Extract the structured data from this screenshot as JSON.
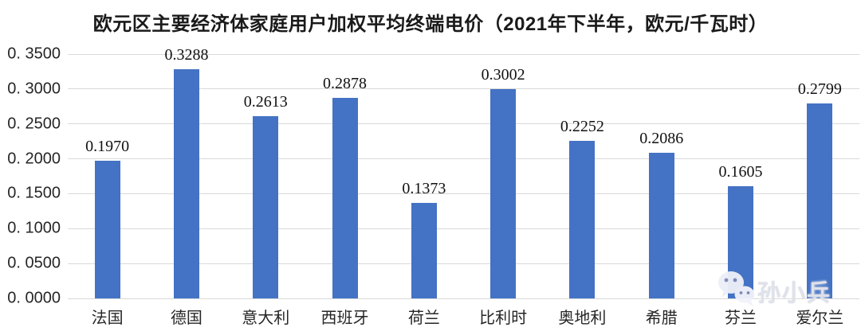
{
  "chart_data": {
    "type": "bar",
    "title": "欧元区主要经济体家庭用户加权平均终端电价（2021年下半年，欧元/千瓦时）",
    "categories": [
      "法国",
      "德国",
      "意大利",
      "西班牙",
      "荷兰",
      "比利时",
      "奥地利",
      "希腊",
      "芬兰",
      "爱尔兰"
    ],
    "values": [
      0.197,
      0.3288,
      0.2613,
      0.2878,
      0.1373,
      0.3002,
      0.2252,
      0.2086,
      0.1605,
      0.2799
    ],
    "value_labels": [
      "0.1970",
      "0.3288",
      "0.2613",
      "0.2878",
      "0.1373",
      "0.3002",
      "0.2252",
      "0.2086",
      "0.1605",
      "0.2799"
    ],
    "xlabel": "",
    "ylabel": "",
    "ylim": [
      0,
      0.35
    ],
    "yticks": [
      0.35,
      0.3,
      0.25,
      0.2,
      0.15,
      0.1,
      0.05,
      0.0
    ],
    "ytick_labels": [
      "0. 3500",
      "0. 3000",
      "0. 2500",
      "0. 2000",
      "0. 1500",
      "0. 1000",
      "0. 0500",
      "0. 0000"
    ],
    "grid": true,
    "legend": false,
    "bar_color": "#4472C4"
  },
  "watermark": {
    "text": "孙小兵",
    "icon": "wechat-icon"
  },
  "colors": {
    "bar": "#4472C4",
    "gridline": "#D9D9D9",
    "axis_text": "#262626",
    "value_label_text": "#111111",
    "watermark_text": "#E2E4EC"
  }
}
